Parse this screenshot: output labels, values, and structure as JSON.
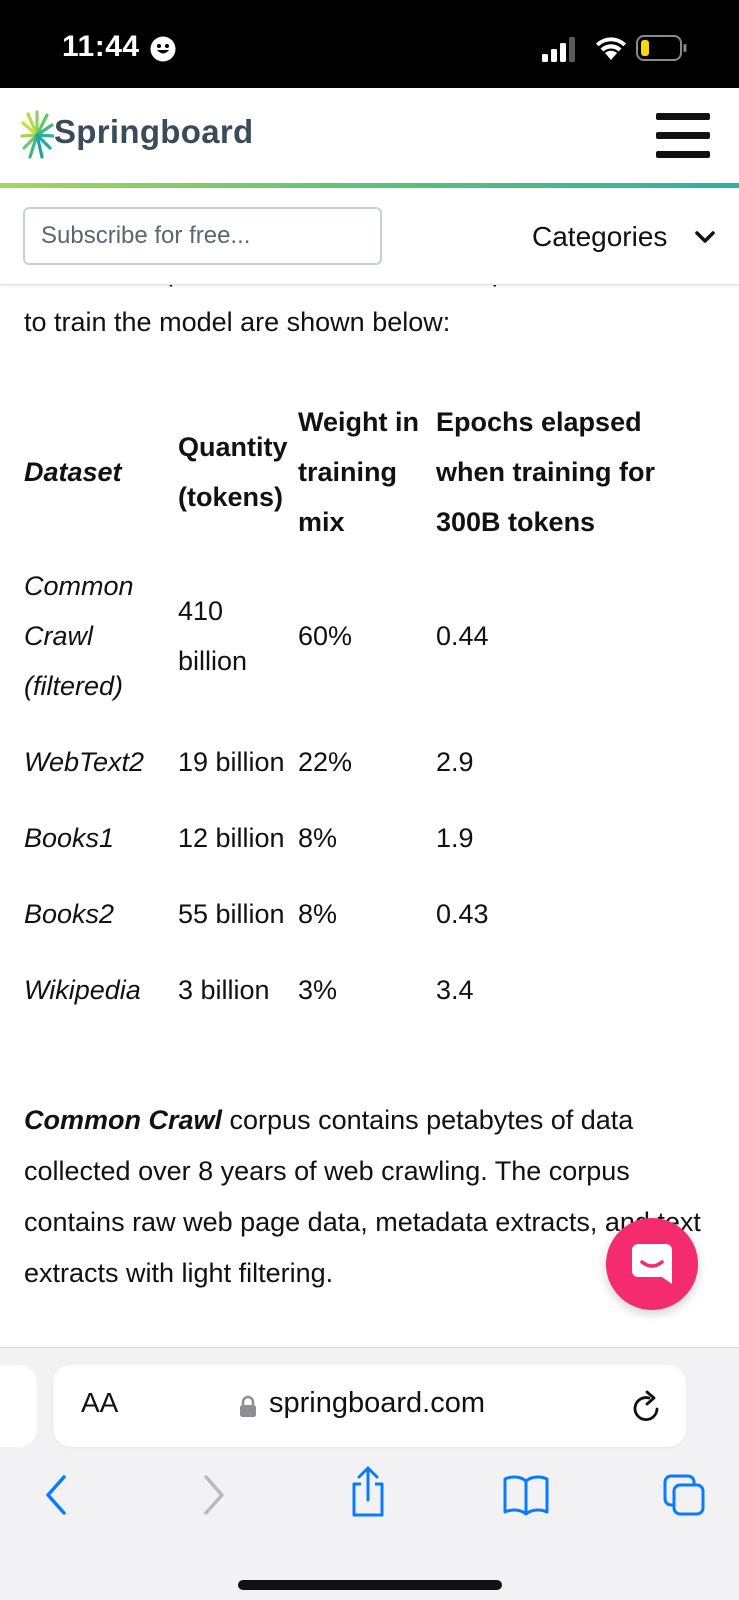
{
  "status_bar": {
    "time": "11:44"
  },
  "header": {
    "brand": "Springboard",
    "brand_color": "#3c4b5a",
    "accent_gradient": [
      "#a5d65a",
      "#2bb3a0"
    ]
  },
  "subscribe": {
    "placeholder": "Subscribe for free...",
    "categories_label": "Categories"
  },
  "article": {
    "intro": "include Wikipedia and books. The multiple datasets used to train the model are shown below:",
    "table": {
      "headers": [
        "Dataset",
        "Quantity (tokens)",
        "Weight in training mix",
        "Epochs elapsed when training for 300B tokens"
      ],
      "rows": [
        [
          "Common Crawl (filtered)",
          "410 billion",
          "60%",
          "0.44"
        ],
        [
          "WebText2",
          "19 billion",
          "22%",
          "2.9"
        ],
        [
          "Books1",
          "12 billion",
          "8%",
          "1.9"
        ],
        [
          "Books2",
          "55 billion",
          "8%",
          "0.43"
        ],
        [
          "Wikipedia",
          "3 billion",
          "3%",
          "3.4"
        ]
      ]
    },
    "crawl_bold": "Common Crawl",
    "crawl_text": " corpus contains petabytes of data collected over 8 years of web crawling. The corpus contains raw web page data, metadata extracts, and text extracts with light filtering."
  },
  "chat": {
    "icon": "chat-bubble-icon",
    "color": "#f42b6e"
  },
  "browser": {
    "text_size_label": "AA",
    "url": "springboard.com"
  }
}
